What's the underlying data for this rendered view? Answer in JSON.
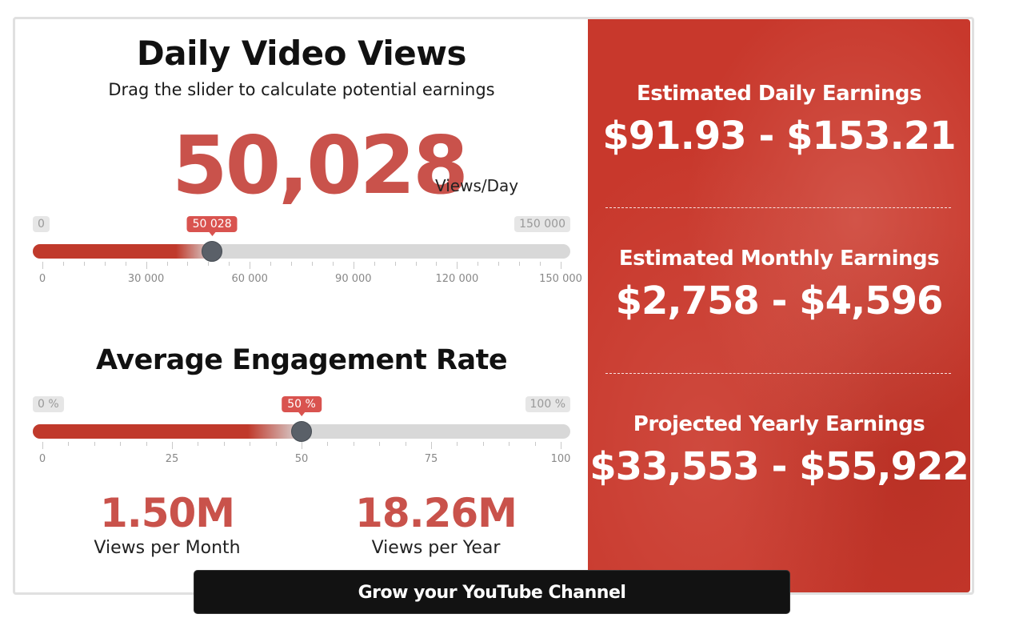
{
  "views": {
    "title": "Daily Video Views",
    "subtitle": "Drag the slider to calculate potential earnings",
    "value_text": "50,028",
    "unit": "Views/Day",
    "slider": {
      "min": 0,
      "max": 150000,
      "value": 50028,
      "min_label": "0",
      "max_label": "150 000",
      "value_label": "50 028",
      "tick_labels": [
        "0",
        "30 000",
        "60 000",
        "90 000",
        "120 000",
        "150 000"
      ],
      "minor_per_major": 4
    }
  },
  "engagement": {
    "title": "Average Engagement Rate",
    "slider": {
      "min": 0,
      "max": 100,
      "value": 50,
      "min_label": "0 %",
      "max_label": "100 %",
      "value_label": "50 %",
      "tick_labels": [
        "0",
        "25",
        "50",
        "75",
        "100"
      ],
      "minor_per_major": 4
    }
  },
  "stats": {
    "month_value": "1.50M",
    "month_label": "Views per Month",
    "year_value": "18.26M",
    "year_label": "Views per Year"
  },
  "earnings": {
    "daily_label": "Estimated Daily Earnings",
    "daily_value": "$91.93 - $153.21",
    "monthly_label": "Estimated Monthly Earnings",
    "monthly_value": "$2,758 - $4,596",
    "yearly_label": "Projected Yearly Earnings",
    "yearly_value": "$33,553 - $55,922"
  },
  "cta": {
    "label": "Grow your YouTube Channel"
  },
  "colors": {
    "accent": "#c9524b",
    "panel": "#c8382c",
    "fill": "#c0392b",
    "track": "#d8d8d8",
    "thumb": "#5a6068",
    "button": "#121212"
  }
}
